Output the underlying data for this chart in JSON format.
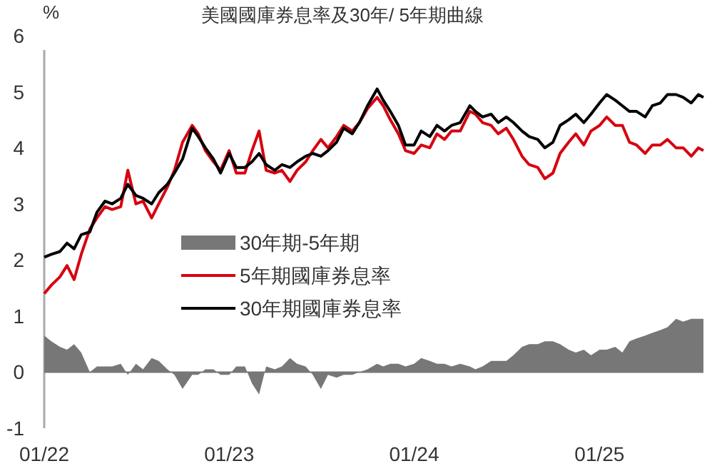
{
  "chart_data": {
    "type": "line",
    "title": "美國國庫券息率及30年/ 5年期曲線",
    "ylabel": "%",
    "x": [
      "2022-01-01",
      "2022-01-15",
      "2022-02-01",
      "2022-02-15",
      "2022-03-01",
      "2022-03-15",
      "2022-04-01",
      "2022-04-15",
      "2022-05-01",
      "2022-05-15",
      "2022-06-01",
      "2022-06-15",
      "2022-07-01",
      "2022-07-15",
      "2022-08-01",
      "2022-08-15",
      "2022-09-01",
      "2022-09-15",
      "2022-10-01",
      "2022-10-20",
      "2022-11-01",
      "2022-11-15",
      "2022-12-01",
      "2022-12-15",
      "2023-01-01",
      "2023-01-15",
      "2023-02-01",
      "2023-02-15",
      "2023-03-01",
      "2023-03-15",
      "2023-04-01",
      "2023-04-15",
      "2023-05-01",
      "2023-05-15",
      "2023-06-01",
      "2023-06-15",
      "2023-07-01",
      "2023-07-15",
      "2023-08-01",
      "2023-08-15",
      "2023-09-01",
      "2023-09-15",
      "2023-10-01",
      "2023-10-20",
      "2023-11-01",
      "2023-11-15",
      "2023-12-01",
      "2023-12-15",
      "2024-01-01",
      "2024-01-15",
      "2024-02-01",
      "2024-02-15",
      "2024-03-01",
      "2024-03-15",
      "2024-04-01",
      "2024-04-20",
      "2024-05-01",
      "2024-05-15",
      "2024-06-01",
      "2024-06-15",
      "2024-07-01",
      "2024-07-15",
      "2024-08-01",
      "2024-08-15",
      "2024-09-01",
      "2024-09-15",
      "2024-10-01",
      "2024-10-15",
      "2024-11-01",
      "2024-11-15",
      "2024-12-01",
      "2024-12-15",
      "2025-01-01",
      "2025-01-15",
      "2025-02-01",
      "2025-02-15",
      "2025-03-01",
      "2025-03-15",
      "2025-04-01",
      "2025-04-15",
      "2025-05-01",
      "2025-05-15",
      "2025-06-01",
      "2025-06-15",
      "2025-07-01",
      "2025-07-15",
      "2025-07-25"
    ],
    "series": [
      {
        "name": "30年期-5年期",
        "type": "area",
        "color": "#777777",
        "values": [
          0.65,
          0.55,
          0.45,
          0.4,
          0.5,
          0.35,
          0.0,
          0.1,
          0.1,
          0.1,
          0.15,
          -0.05,
          0.15,
          0.05,
          0.25,
          0.2,
          0.05,
          -0.05,
          -0.3,
          -0.05,
          -0.05,
          0.05,
          0.05,
          -0.05,
          -0.05,
          0.1,
          0.1,
          -0.2,
          -0.4,
          0.1,
          0.05,
          0.1,
          0.25,
          0.15,
          0.1,
          -0.05,
          -0.3,
          -0.05,
          -0.1,
          -0.05,
          -0.05,
          0.0,
          0.05,
          0.15,
          0.1,
          0.15,
          0.15,
          0.1,
          0.15,
          0.25,
          0.2,
          0.15,
          0.15,
          0.1,
          0.15,
          0.1,
          0.05,
          0.1,
          0.2,
          0.2,
          0.2,
          0.3,
          0.45,
          0.5,
          0.5,
          0.55,
          0.55,
          0.5,
          0.4,
          0.35,
          0.4,
          0.3,
          0.4,
          0.4,
          0.45,
          0.35,
          0.55,
          0.6,
          0.65,
          0.7,
          0.75,
          0.8,
          0.95,
          0.9,
          0.95,
          0.95,
          0.95
        ]
      },
      {
        "name": "5年期國庫券息率",
        "color": "#d7000f",
        "values": [
          1.4,
          1.55,
          1.7,
          1.9,
          1.65,
          2.1,
          2.55,
          2.75,
          2.95,
          2.9,
          2.95,
          3.6,
          3.0,
          3.05,
          2.75,
          3.0,
          3.3,
          3.6,
          4.1,
          4.4,
          4.25,
          3.95,
          3.75,
          3.6,
          3.95,
          3.55,
          3.55,
          3.95,
          4.3,
          3.6,
          3.55,
          3.6,
          3.4,
          3.6,
          3.75,
          3.95,
          4.15,
          4.0,
          4.2,
          4.4,
          4.3,
          4.45,
          4.7,
          4.9,
          4.75,
          4.5,
          4.25,
          3.95,
          3.9,
          4.05,
          4.0,
          4.25,
          4.15,
          4.3,
          4.3,
          4.65,
          4.6,
          4.45,
          4.4,
          4.25,
          4.35,
          4.15,
          3.85,
          3.7,
          3.65,
          3.45,
          3.55,
          3.9,
          4.1,
          4.25,
          4.05,
          4.3,
          4.4,
          4.55,
          4.4,
          4.4,
          4.1,
          4.05,
          3.9,
          4.05,
          4.05,
          4.15,
          4.0,
          4.0,
          3.85,
          4.0,
          3.95
        ]
      },
      {
        "name": "30年期國庫券息率",
        "color": "#000000",
        "values": [
          2.05,
          2.1,
          2.15,
          2.3,
          2.2,
          2.45,
          2.5,
          2.85,
          3.05,
          3.0,
          3.1,
          3.35,
          3.15,
          3.1,
          3.0,
          3.2,
          3.35,
          3.55,
          3.8,
          4.35,
          4.2,
          4.0,
          3.8,
          3.55,
          3.9,
          3.65,
          3.65,
          3.75,
          3.9,
          3.7,
          3.6,
          3.7,
          3.65,
          3.75,
          3.85,
          3.9,
          3.85,
          3.95,
          4.1,
          4.35,
          4.25,
          4.45,
          4.75,
          5.05,
          4.85,
          4.65,
          4.4,
          4.05,
          4.05,
          4.3,
          4.2,
          4.4,
          4.3,
          4.4,
          4.45,
          4.75,
          4.65,
          4.55,
          4.6,
          4.45,
          4.55,
          4.45,
          4.3,
          4.2,
          4.15,
          4.0,
          4.1,
          4.4,
          4.5,
          4.6,
          4.45,
          4.6,
          4.8,
          4.95,
          4.85,
          4.75,
          4.65,
          4.65,
          4.55,
          4.75,
          4.8,
          4.95,
          4.95,
          4.9,
          4.8,
          4.95,
          4.9
        ]
      }
    ],
    "xlim": [
      "2022-01-01",
      "2025-07-25"
    ],
    "xticks": [
      {
        "value": "2022-01-01",
        "label": "01/22"
      },
      {
        "value": "2023-01-01",
        "label": "01/23"
      },
      {
        "value": "2024-01-01",
        "label": "01/24"
      },
      {
        "value": "2025-01-01",
        "label": "01/25"
      }
    ],
    "ylim": [
      -1,
      6
    ],
    "yticks": [
      -1,
      0,
      1,
      2,
      3,
      4,
      5,
      6
    ],
    "legend": "center left"
  }
}
